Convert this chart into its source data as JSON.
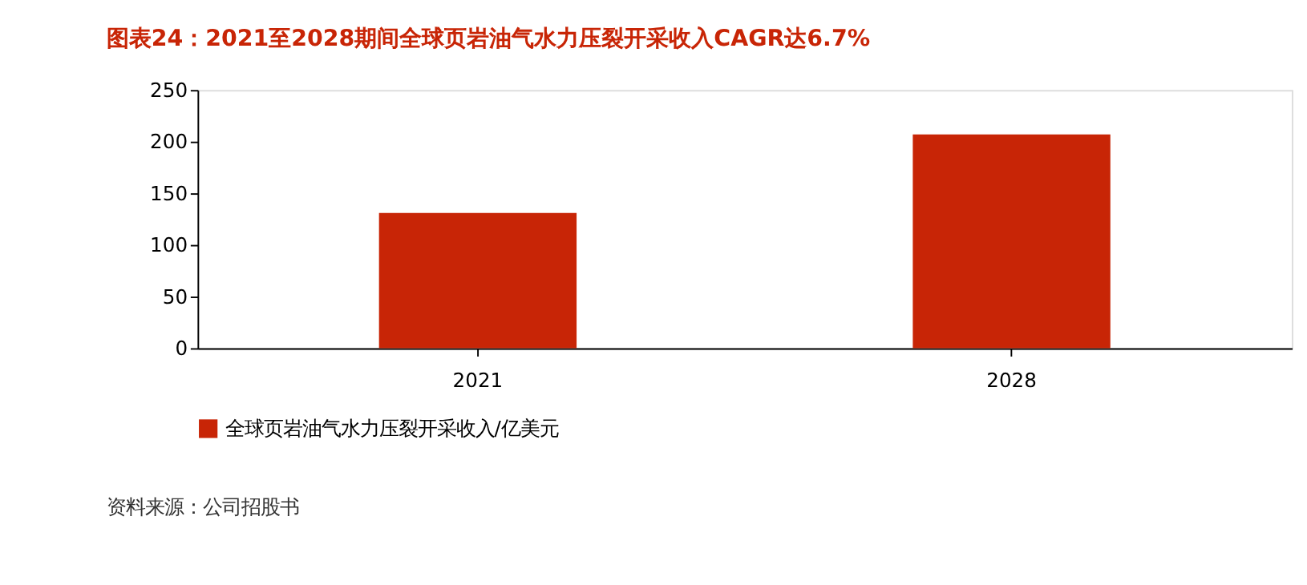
{
  "chart_data": {
    "type": "bar",
    "title": "图表24：2021至2028期间全球页岩油气水力压裂开采收入CAGR达6.7%",
    "categories": [
      "2021",
      "2028"
    ],
    "series": [
      {
        "name": "全球页岩油气水力压裂开采收入/亿美元",
        "color": "#c82506",
        "values": [
          131,
          207
        ]
      }
    ],
    "ylim": [
      0,
      250
    ],
    "yticks": [
      0,
      50,
      100,
      150,
      200,
      250
    ],
    "grid": false,
    "legend": "bottom",
    "annotations": [
      "资料来源：公司招股书"
    ]
  }
}
